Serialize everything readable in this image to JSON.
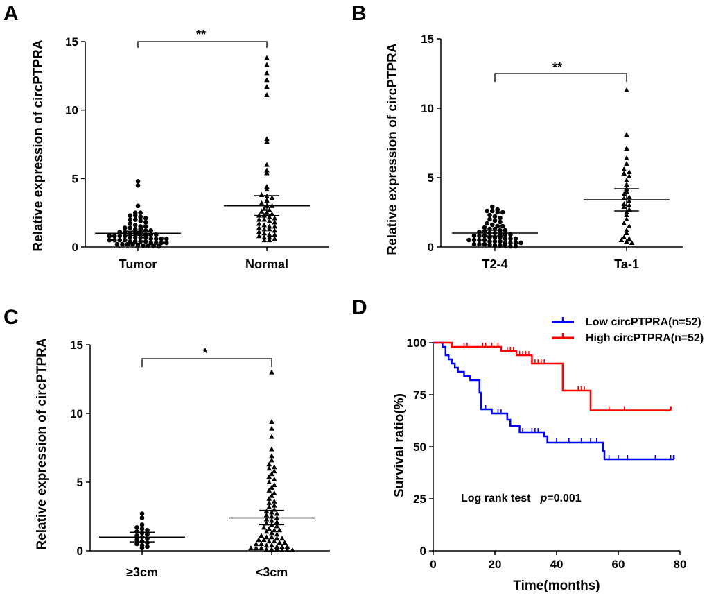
{
  "chart_data": [
    {
      "panel": "A",
      "type": "scatter",
      "title": "",
      "xlabel": "",
      "ylabel": "Relative expression of circPTPRA",
      "ylim": [
        0,
        15
      ],
      "yticks": [
        "0",
        "5",
        "10",
        "15"
      ],
      "yticks_values": [
        0,
        5,
        10,
        15
      ],
      "categories": [
        "Tumor",
        "Normal"
      ],
      "significance": "**",
      "groups": [
        {
          "name": "Tumor",
          "marker": "circle",
          "values": [
            4.8,
            4.5,
            3.0,
            2.5,
            2.5,
            2.3,
            2.3,
            2.2,
            2.1,
            2.0,
            2.0,
            1.9,
            1.8,
            1.7,
            1.6,
            1.5,
            1.5,
            1.4,
            1.4,
            1.3,
            1.3,
            1.2,
            1.2,
            1.1,
            1.1,
            1.0,
            1.0,
            1.0,
            0.9,
            0.9,
            0.9,
            0.8,
            0.8,
            0.8,
            0.8,
            0.7,
            0.7,
            0.7,
            0.7,
            0.6,
            0.6,
            0.6,
            0.6,
            0.5,
            0.5,
            0.5,
            0.5,
            0.4,
            0.4,
            0.4,
            0.4,
            0.3,
            0.3,
            0.3,
            0.3,
            0.2,
            0.2,
            0.2,
            0.2,
            0.15,
            0.1,
            0.1,
            0.1,
            0.05
          ],
          "mean": 1.0,
          "sem_low": 0.85,
          "sem_high": 1.15
        },
        {
          "name": "Normal",
          "marker": "triangle",
          "values": [
            13.8,
            13.3,
            12.7,
            12.2,
            11.7,
            11.1,
            7.9,
            7.7,
            6.0,
            5.6,
            5.4,
            4.4,
            4.2,
            3.8,
            3.7,
            3.6,
            3.4,
            3.2,
            3.0,
            3.0,
            2.8,
            2.7,
            2.6,
            2.5,
            2.4,
            2.3,
            2.3,
            2.2,
            2.1,
            2.0,
            2.0,
            1.9,
            1.8,
            1.7,
            1.6,
            1.5,
            1.5,
            1.4,
            1.3,
            1.3,
            1.2,
            1.1,
            1.0,
            0.9,
            0.9,
            0.8,
            0.7,
            0.7,
            0.6,
            0.5,
            0.5
          ],
          "mean": 3.0,
          "sem_low": 2.3,
          "sem_high": 3.75
        }
      ]
    },
    {
      "panel": "B",
      "type": "scatter",
      "title": "",
      "xlabel": "",
      "ylabel": "Relative expression of circPTPRA",
      "ylim": [
        0,
        15
      ],
      "yticks": [
        "0",
        "5",
        "10",
        "15"
      ],
      "yticks_values": [
        0,
        5,
        10,
        15
      ],
      "categories": [
        "T2-4",
        "Ta-1"
      ],
      "significance": "**",
      "groups": [
        {
          "name": "T2-4",
          "marker": "circle",
          "values": [
            2.9,
            2.7,
            2.6,
            2.6,
            2.5,
            2.5,
            2.3,
            2.2,
            2.1,
            2.0,
            1.9,
            1.8,
            1.7,
            1.6,
            1.5,
            1.5,
            1.4,
            1.3,
            1.3,
            1.2,
            1.2,
            1.1,
            1.1,
            1.0,
            1.0,
            0.9,
            0.9,
            0.9,
            0.8,
            0.8,
            0.8,
            0.7,
            0.7,
            0.7,
            0.6,
            0.6,
            0.6,
            0.5,
            0.5,
            0.5,
            0.5,
            0.4,
            0.4,
            0.4,
            0.3,
            0.3,
            0.3,
            0.3,
            0.2,
            0.2,
            0.2,
            0.15,
            0.1,
            0.1,
            0.1,
            0.05,
            0.05
          ],
          "mean": 1.0,
          "sem_low": 0.8,
          "sem_high": 1.2
        },
        {
          "name": "Ta-1",
          "marker": "triangle",
          "values": [
            11.3,
            8.1,
            7.1,
            6.4,
            6.0,
            5.6,
            5.4,
            5.3,
            5.1,
            4.8,
            4.5,
            4.2,
            4.0,
            3.8,
            3.6,
            3.5,
            3.3,
            3.1,
            3.0,
            2.9,
            2.7,
            2.5,
            2.3,
            2.0,
            1.7,
            1.5,
            1.2,
            1.0,
            0.7,
            0.6,
            0.5,
            0.4,
            0.3
          ],
          "mean": 3.4,
          "sem_low": 2.6,
          "sem_high": 4.2
        }
      ]
    },
    {
      "panel": "C",
      "type": "scatter",
      "title": "",
      "xlabel": "",
      "ylabel": "Relative expression of circPTPRA",
      "ylim": [
        0,
        15
      ],
      "yticks": [
        "0",
        "5",
        "10",
        "15"
      ],
      "yticks_values": [
        0,
        5,
        10,
        15
      ],
      "categories": [
        "≥3cm",
        "<3cm"
      ],
      "significance": "*",
      "groups": [
        {
          "name": "≥3cm",
          "marker": "circle",
          "values": [
            2.7,
            2.4,
            1.9,
            1.7,
            1.6,
            1.5,
            1.4,
            1.3,
            1.2,
            1.1,
            1.0,
            0.9,
            0.8,
            0.7,
            0.6,
            0.5,
            0.4,
            0.3,
            0.2
          ],
          "mean": 1.0,
          "sem_low": 0.65,
          "sem_high": 1.35
        },
        {
          "name": "<3cm",
          "marker": "triangle",
          "values": [
            13.0,
            9.4,
            8.9,
            8.3,
            7.4,
            6.9,
            6.6,
            6.3,
            6.1,
            6.0,
            5.8,
            5.6,
            5.4,
            5.2,
            5.0,
            4.8,
            4.6,
            4.4,
            4.2,
            4.0,
            3.8,
            3.6,
            3.5,
            3.3,
            3.2,
            3.0,
            2.9,
            2.8,
            2.7,
            2.6,
            2.5,
            2.4,
            2.3,
            2.2,
            2.1,
            2.0,
            1.9,
            1.8,
            1.7,
            1.6,
            1.5,
            1.5,
            1.4,
            1.3,
            1.2,
            1.1,
            1.0,
            1.0,
            0.9,
            0.9,
            0.8,
            0.8,
            0.7,
            0.7,
            0.6,
            0.6,
            0.5,
            0.5,
            0.4,
            0.4,
            0.3,
            0.3,
            0.3,
            0.2,
            0.2,
            0.2,
            0.1,
            0.1,
            0.1,
            0.05,
            0.05,
            0.05
          ],
          "mean": 2.4,
          "sem_low": 1.9,
          "sem_high": 2.95
        }
      ]
    },
    {
      "panel": "D",
      "type": "line",
      "subtype": "kaplan-meier",
      "title": "",
      "xlabel": "Time(months)",
      "ylabel": "Survival ratio(%)",
      "xlim": [
        0,
        80
      ],
      "ylim": [
        0,
        100
      ],
      "xticks": [
        "0",
        "20",
        "40",
        "60",
        "80"
      ],
      "xticks_values": [
        0,
        20,
        40,
        60,
        80
      ],
      "yticks": [
        "0",
        "25",
        "50",
        "75",
        "100"
      ],
      "yticks_values": [
        0,
        25,
        50,
        75,
        100
      ],
      "legend_position": "top-right",
      "annotation": "Log rank test",
      "annotation_p_label": "p",
      "annotation_p_value": "=0.001",
      "series": [
        {
          "name": "Low circPTPRA(n=52)",
          "color": "#0000ff",
          "steps": [
            [
              0,
              100
            ],
            [
              3,
              98
            ],
            [
              4,
              94
            ],
            [
              5,
              92
            ],
            [
              6,
              90
            ],
            [
              7,
              88
            ],
            [
              8,
              86
            ],
            [
              10,
              84
            ],
            [
              12,
              82
            ],
            [
              15,
              76
            ],
            [
              15.5,
              68
            ],
            [
              19,
              66
            ],
            [
              24,
              63
            ],
            [
              25,
              60
            ],
            [
              28,
              57
            ],
            [
              36,
              55
            ],
            [
              37,
              52
            ],
            [
              55,
              48
            ],
            [
              55.5,
              44
            ],
            [
              78,
              44
            ]
          ],
          "end_mark": [
            78,
            46
          ],
          "censor_x": [
            17,
            19,
            21,
            22,
            29,
            32,
            33,
            34,
            40,
            44,
            48,
            51,
            53,
            57,
            60,
            63,
            72,
            77
          ]
        },
        {
          "name": "High circPTPRA(n=52)",
          "color": "#ff0000",
          "steps": [
            [
              0,
              100
            ],
            [
              6,
              98
            ],
            [
              22,
              96
            ],
            [
              27,
              94
            ],
            [
              32,
              90
            ],
            [
              42,
              77
            ],
            [
              51,
              67.5
            ],
            [
              77,
              67.5
            ]
          ],
          "end_mark": [
            77,
            69.5
          ],
          "censor_x": [
            10,
            11,
            16,
            17,
            19,
            21,
            24,
            25,
            26,
            28,
            29,
            30,
            31,
            33,
            34,
            35,
            36,
            47,
            48,
            49,
            57,
            62
          ]
        }
      ]
    }
  ]
}
